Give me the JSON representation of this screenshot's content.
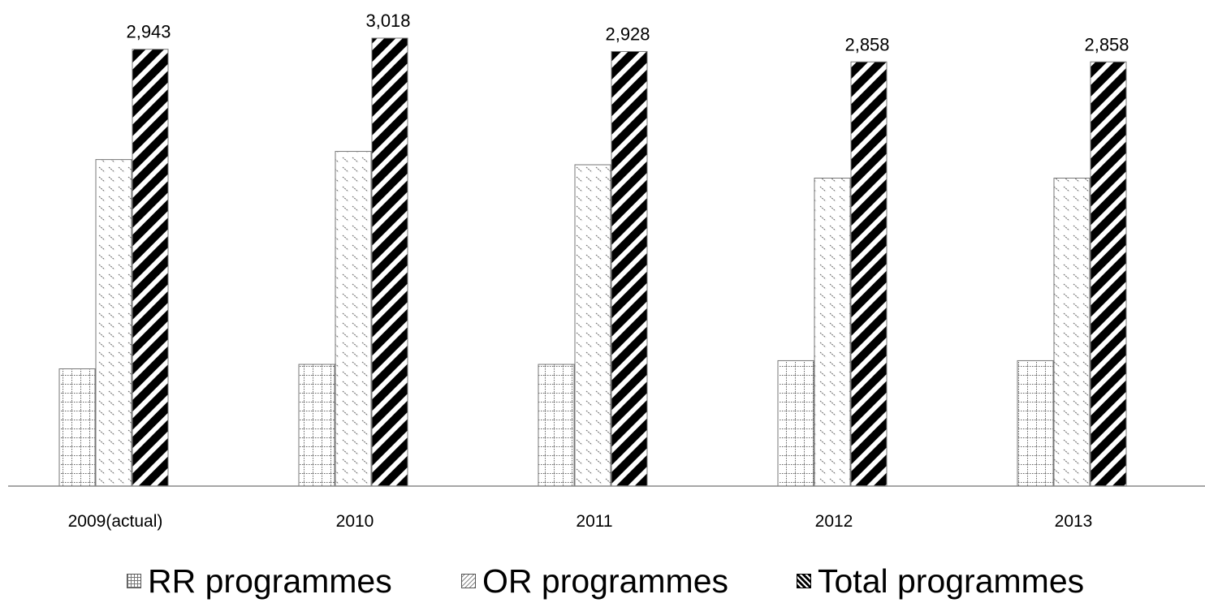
{
  "chart_data": {
    "type": "bar",
    "title": "",
    "xlabel": "",
    "ylabel": "",
    "categories": [
      "2009(actual)",
      "2010",
      "2011",
      "2012",
      "2013"
    ],
    "series": [
      {
        "name": "RR programmes",
        "values": [
          790,
          820,
          820,
          845,
          845
        ],
        "pattern": "dotted-grid"
      },
      {
        "name": "OR programmes",
        "values": [
          2200,
          2255,
          2165,
          2075,
          2075
        ],
        "pattern": "light-diagonal"
      },
      {
        "name": "Total programmes",
        "values": [
          2943,
          3018,
          2928,
          2858,
          2858
        ],
        "pattern": "heavy-diagonal",
        "data_labels": [
          "2,943",
          "3,018",
          "2,928",
          "2,858",
          "2,858"
        ]
      }
    ],
    "ylim": [
      0,
      3018
    ],
    "grid": false,
    "legend_position": "bottom",
    "colors": {
      "bar_border": "#777777",
      "axis": "#888888",
      "pattern_dark": "#000000",
      "pattern_light": "#777777"
    }
  }
}
